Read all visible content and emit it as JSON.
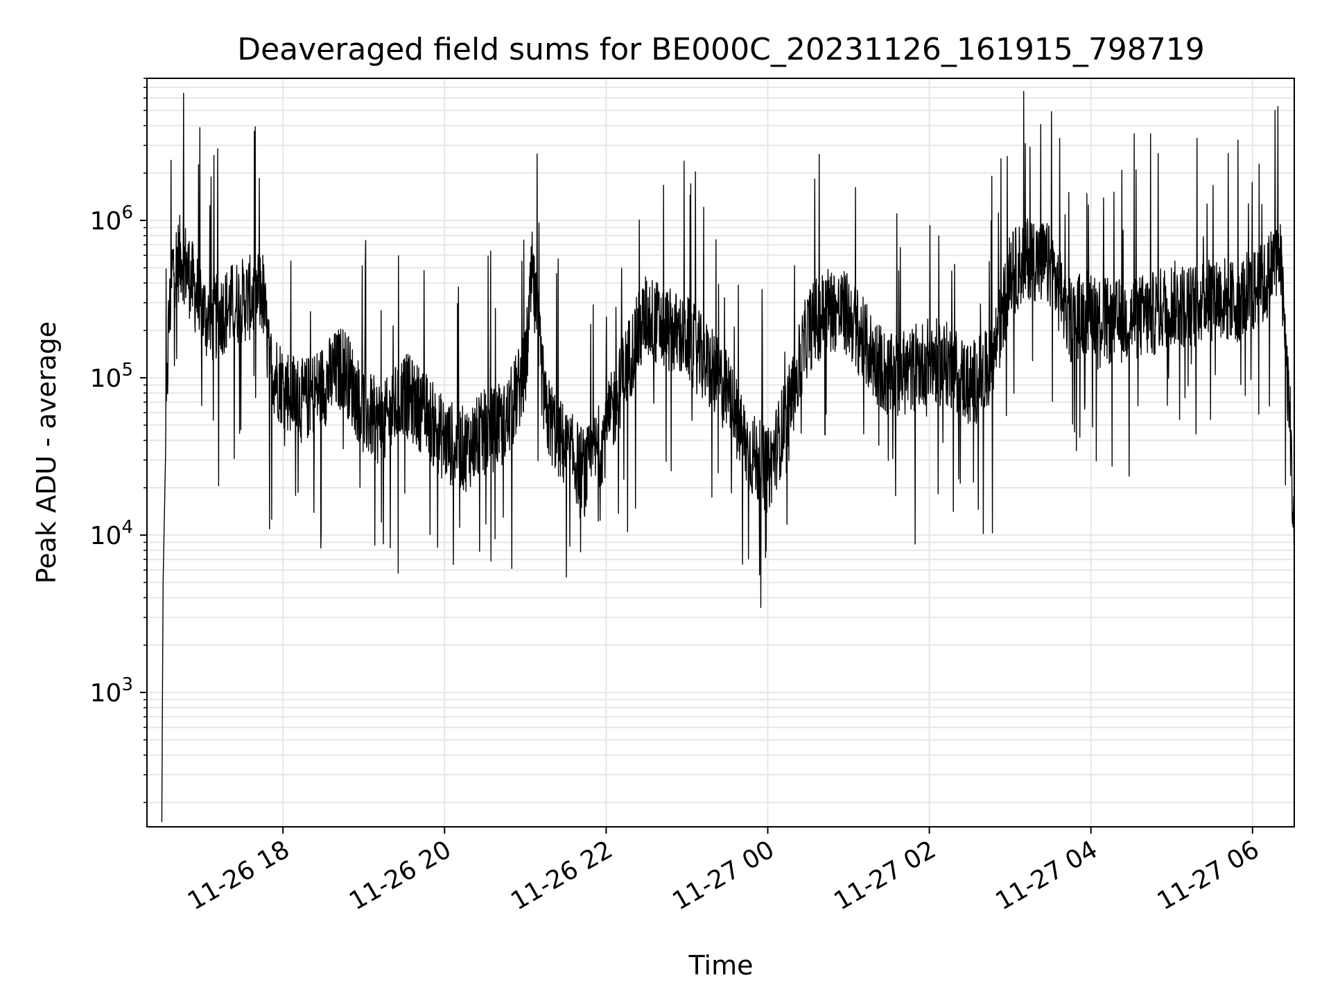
{
  "chart_data": {
    "type": "line",
    "title": "Deaveraged field sums for BE000C_20231126_161915_798719",
    "xlabel": "Time",
    "ylabel": "Peak ADU - average",
    "y_scale": "log",
    "ylim": [
      140,
      8000000
    ],
    "xlim": [
      "2023-11-26 16:19",
      "2023-11-27 06:31"
    ],
    "x_ticks": [
      "2023-11-26 18:00",
      "2023-11-26 20:00",
      "2023-11-26 22:00",
      "2023-11-27 00:00",
      "2023-11-27 02:00",
      "2023-11-27 04:00",
      "2023-11-27 06:00"
    ],
    "x_tick_labels": [
      "11-26 18",
      "11-26 20",
      "11-26 22",
      "11-27 00",
      "11-27 02",
      "11-27 04",
      "11-27 06"
    ],
    "y_tick_base": "10",
    "y_tick_exponents": [
      "3",
      "4",
      "5",
      "6"
    ],
    "grid": true,
    "line_color": "#000000",
    "series": [
      {
        "x": [
          "2023-11-26 16:30",
          "2023-11-26 16:31",
          "2023-11-26 16:33",
          "2023-11-26 16:35",
          "2023-11-26 16:38",
          "2023-11-26 16:45",
          "2023-11-26 16:55",
          "2023-11-26 17:05",
          "2023-11-26 17:15",
          "2023-11-26 17:25",
          "2023-11-26 17:35",
          "2023-11-26 17:45",
          "2023-11-26 17:50",
          "2023-11-26 18:00",
          "2023-11-26 18:15",
          "2023-11-26 18:30",
          "2023-11-26 18:45",
          "2023-11-26 19:00",
          "2023-11-26 19:15",
          "2023-11-26 19:30",
          "2023-11-26 19:45",
          "2023-11-26 20:00",
          "2023-11-26 20:15",
          "2023-11-26 20:30",
          "2023-11-26 20:45",
          "2023-11-26 21:00",
          "2023-11-26 21:05",
          "2023-11-26 21:15",
          "2023-11-26 21:30",
          "2023-11-26 21:45",
          "2023-11-26 22:00",
          "2023-11-26 22:15",
          "2023-11-26 22:30",
          "2023-11-26 22:45",
          "2023-11-26 23:00",
          "2023-11-26 23:15",
          "2023-11-26 23:30",
          "2023-11-26 23:45",
          "2023-11-27 00:00",
          "2023-11-27 00:15",
          "2023-11-27 00:30",
          "2023-11-27 00:45",
          "2023-11-27 01:00",
          "2023-11-27 01:15",
          "2023-11-27 01:30",
          "2023-11-27 01:45",
          "2023-11-27 02:00",
          "2023-11-27 02:15",
          "2023-11-27 02:30",
          "2023-11-27 02:45",
          "2023-11-27 03:00",
          "2023-11-27 03:15",
          "2023-11-27 03:30",
          "2023-11-27 03:45",
          "2023-11-27 04:00",
          "2023-11-27 04:15",
          "2023-11-27 04:30",
          "2023-11-27 04:45",
          "2023-11-27 05:00",
          "2023-11-27 05:15",
          "2023-11-27 05:30",
          "2023-11-27 05:45",
          "2023-11-27 06:00",
          "2023-11-27 06:10",
          "2023-11-27 06:20",
          "2023-11-27 06:28",
          "2023-11-27 06:31"
        ],
        "y": [
          150,
          5000,
          40000,
          200000,
          500000,
          600000,
          350000,
          220000,
          260000,
          300000,
          320000,
          350000,
          120000,
          90000,
          70000,
          90000,
          120000,
          60000,
          50000,
          80000,
          60000,
          40000,
          35000,
          45000,
          50000,
          110000,
          450000,
          60000,
          35000,
          25000,
          45000,
          120000,
          250000,
          200000,
          180000,
          120000,
          80000,
          35000,
          25000,
          60000,
          200000,
          280000,
          250000,
          150000,
          100000,
          110000,
          130000,
          120000,
          90000,
          110000,
          450000,
          600000,
          500000,
          230000,
          280000,
          220000,
          240000,
          250000,
          300000,
          280000,
          350000,
          300000,
          350000,
          400000,
          700000,
          50000,
          8000
        ]
      }
    ]
  }
}
